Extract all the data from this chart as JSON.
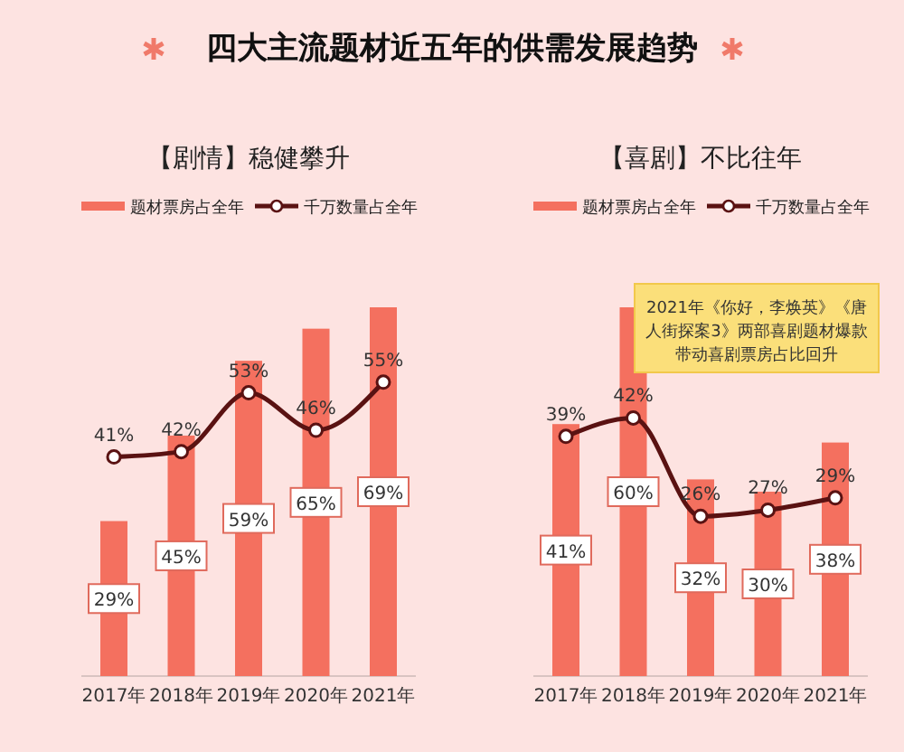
{
  "chart_data": [
    {
      "type": "bar",
      "title": "四大主流题材近五年的供需发展趋势",
      "subtitle": "【剧情】稳健攀升",
      "categories": [
        "2017年",
        "2018年",
        "2019年",
        "2020年",
        "2021年"
      ],
      "legend": "top",
      "series": [
        {
          "name": "题材票房占全年",
          "color": "#f4705f",
          "values": [
            29,
            45,
            59,
            65,
            69
          ],
          "value_labels": [
            "29%",
            "45%",
            "59%",
            "65%",
            "69%"
          ]
        },
        {
          "name": "千万数量占全年",
          "type": "line",
          "color": "#5a1212",
          "marker": "circle",
          "values": [
            41,
            42,
            53,
            46,
            55
          ],
          "value_labels": [
            "41%",
            "42%",
            "53%",
            "46%",
            "55%"
          ]
        }
      ]
    },
    {
      "type": "bar",
      "title": "【喜剧】不比往年",
      "categories": [
        "2017年",
        "2018年",
        "2019年",
        "2020年",
        "2021年"
      ],
      "legend": "top",
      "annotations": [
        "2021年《你好，李焕英》《唐人街探案3》两部喜剧题材爆款带动喜剧票房占比回升"
      ],
      "series": [
        {
          "name": "题材票房占全年",
          "color": "#f4705f",
          "values": [
            41,
            60,
            32,
            30,
            38
          ],
          "value_labels": [
            "41%",
            "60%",
            "32%",
            "30%",
            "38%"
          ]
        },
        {
          "name": "千万数量占全年",
          "type": "line",
          "color": "#5a1212",
          "marker": "circle",
          "values": [
            39,
            42,
            26,
            27,
            29
          ],
          "value_labels": [
            "39%",
            "42%",
            "26%",
            "27%",
            "29%"
          ]
        }
      ]
    }
  ]
}
